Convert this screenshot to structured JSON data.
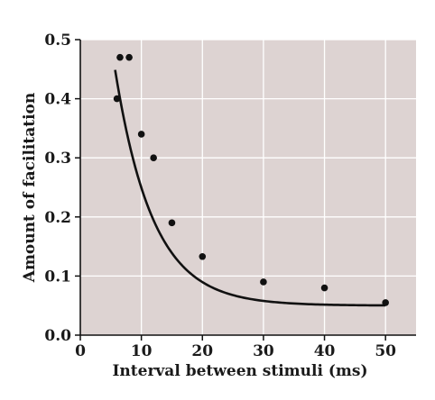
{
  "chart_data": {
    "type": "scatter",
    "title": "",
    "xlabel": "Interval between stimuli (ms)",
    "ylabel": "Amount of facilitation",
    "xlim": [
      0,
      55
    ],
    "ylim": [
      0,
      0.5
    ],
    "x_ticks": [
      "0",
      "10",
      "20",
      "30",
      "40",
      "50"
    ],
    "y_ticks": [
      "0.0",
      "0.1",
      "0.2",
      "0.3",
      "0.4",
      "0.5"
    ],
    "grid": true,
    "background_color": "#ddd3d2",
    "grid_color": "#ffffff",
    "point_color": "#111111",
    "points": [
      {
        "x": 6,
        "y": 0.4
      },
      {
        "x": 6.5,
        "y": 0.47
      },
      {
        "x": 8,
        "y": 0.47
      },
      {
        "x": 10,
        "y": 0.34
      },
      {
        "x": 12,
        "y": 0.3
      },
      {
        "x": 15,
        "y": 0.19
      },
      {
        "x": 20,
        "y": 0.133
      },
      {
        "x": 30,
        "y": 0.09
      },
      {
        "x": 40,
        "y": 0.08
      },
      {
        "x": 50,
        "y": 0.055
      }
    ],
    "fit_curve": {
      "type": "exponential-decay",
      "y0": 0.05,
      "amplitude": 1.0,
      "tau": 6.2,
      "x_start": 5.7,
      "x_end": 50
    }
  }
}
